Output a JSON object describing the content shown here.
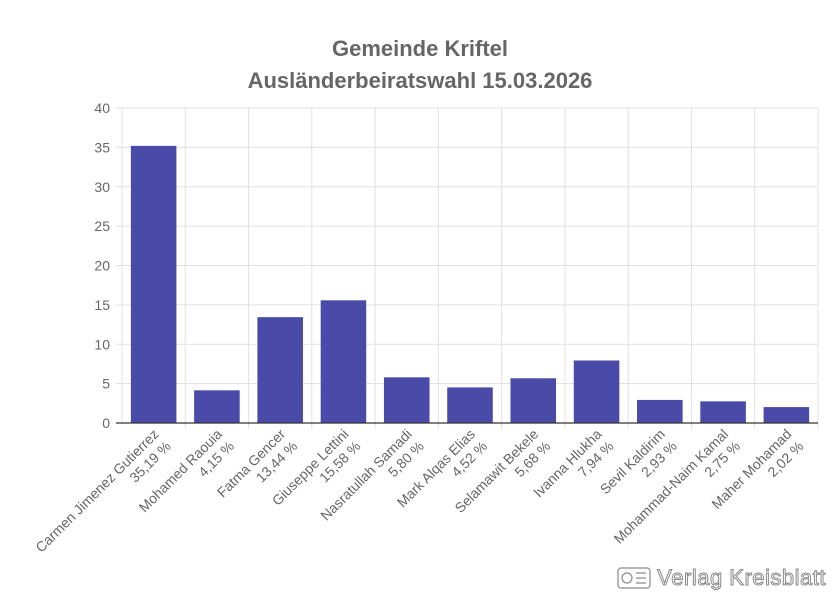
{
  "chart_data": {
    "type": "bar",
    "title": [
      "Gemeinde Kriftel",
      "Ausländerbeiratswahl 15.03.2026"
    ],
    "categories": [
      {
        "name": "Carmen Jimenez Gutierrez",
        "pct": "35,19 %"
      },
      {
        "name": "Mohamed Raouia",
        "pct": "4,15 %"
      },
      {
        "name": "Fatma Gencer",
        "pct": "13,44 %"
      },
      {
        "name": "Giuseppe Lettini",
        "pct": "15,58 %"
      },
      {
        "name": "Nasratullah Samadi",
        "pct": "5,80 %"
      },
      {
        "name": "Mark Alqas Elias",
        "pct": "4,52 %"
      },
      {
        "name": "Selamawit Bekele",
        "pct": "5,68 %"
      },
      {
        "name": "Ivanna Hlukha",
        "pct": "7,94 %"
      },
      {
        "name": "Sevil Kaldirim",
        "pct": "2,93 %"
      },
      {
        "name": "Mohammad-Naim Kamal",
        "pct": "2,75 %"
      },
      {
        "name": "Maher Mohamad",
        "pct": "2,02 %"
      }
    ],
    "values": [
      35.19,
      4.15,
      13.44,
      15.58,
      5.8,
      4.52,
      5.68,
      7.94,
      2.93,
      2.75,
      2.02
    ],
    "ylim": [
      0,
      40
    ],
    "yticks": [
      0,
      5,
      10,
      15,
      20,
      25,
      30,
      35,
      40
    ],
    "grid": true,
    "bar_color": "#4a4aa8"
  },
  "watermark": {
    "text": "Verlag Kreisblatt",
    "icon": "verlag-logo-icon"
  }
}
